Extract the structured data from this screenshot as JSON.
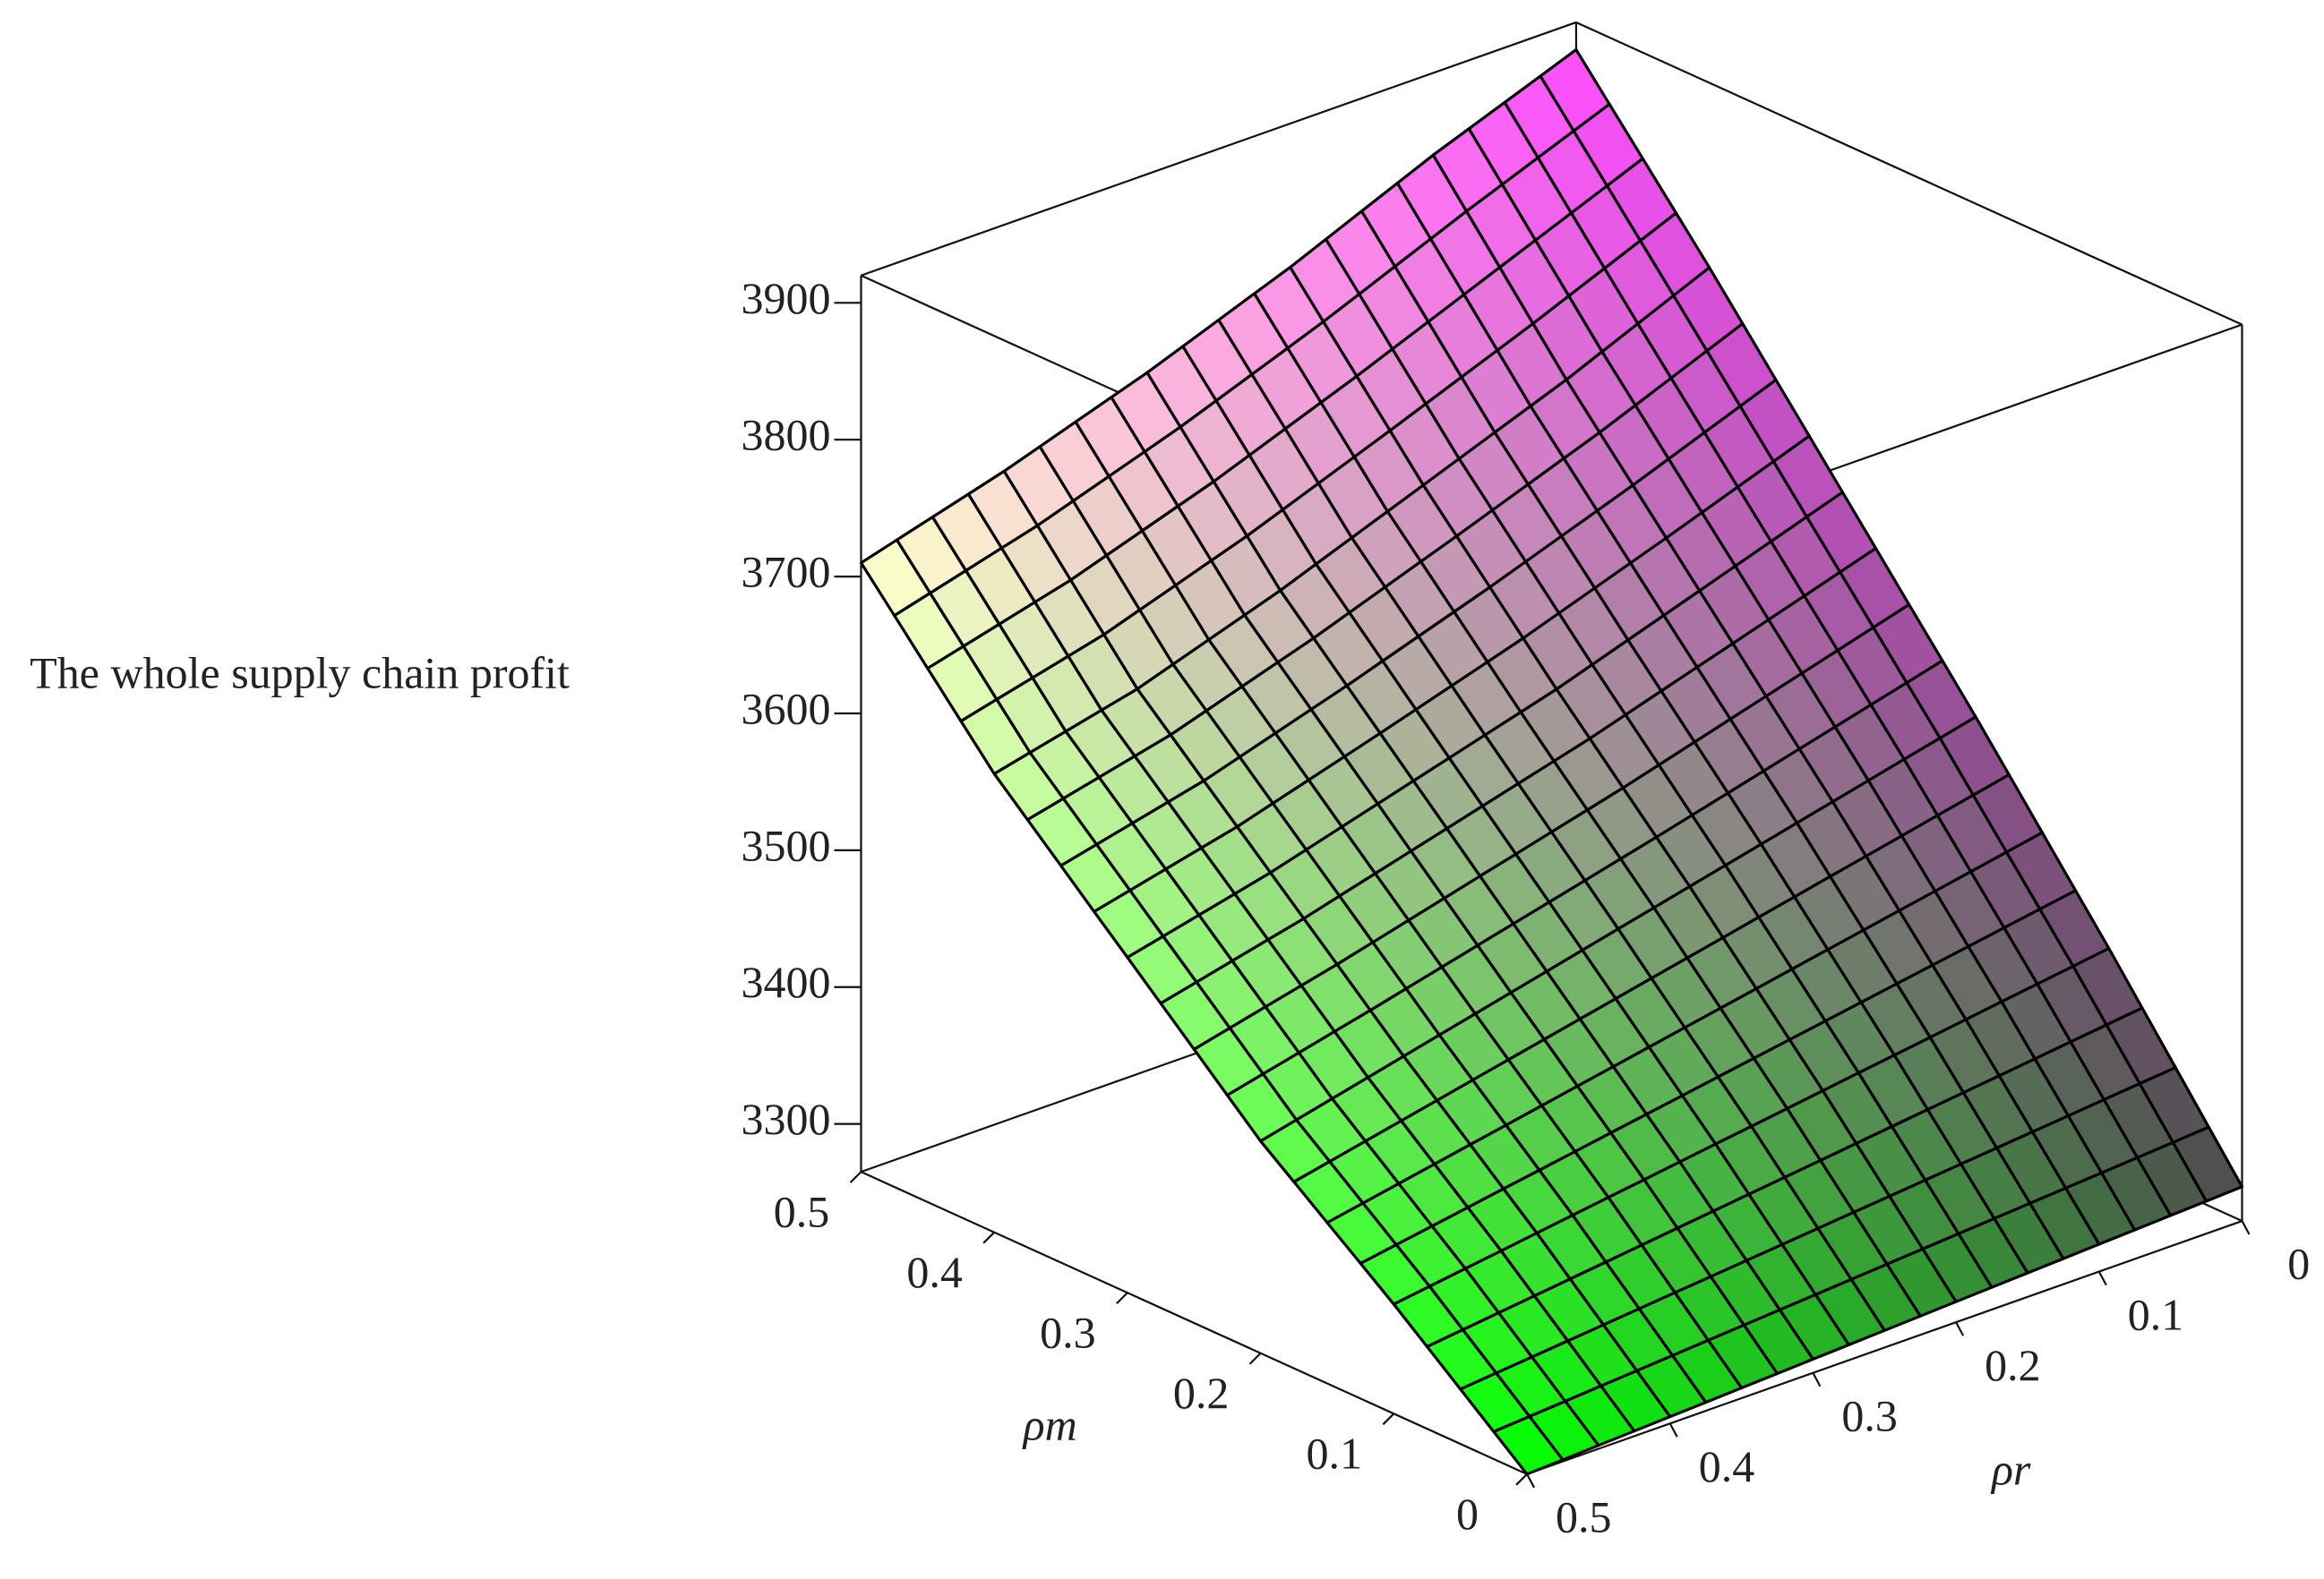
{
  "chart_data": {
    "type": "surface",
    "zlabel": "The whole supply chain profit",
    "xlabel": "ρm",
    "ylabel": "ρr",
    "x": [
      0,
      0.1,
      0.2,
      0.3,
      0.4,
      0.5
    ],
    "y": [
      0,
      0.1,
      0.2,
      0.3,
      0.4,
      0.5
    ],
    "values": [
      [
        3290,
        3285,
        3280,
        3275,
        3270,
        3265
      ],
      [
        3420,
        3405,
        3390,
        3375,
        3360,
        3345
      ],
      [
        3545,
        3520,
        3495,
        3470,
        3445,
        3420
      ],
      [
        3665,
        3630,
        3595,
        3565,
        3535,
        3510
      ],
      [
        3785,
        3740,
        3700,
        3660,
        3625,
        3600
      ],
      [
        3900,
        3860,
        3815,
        3775,
        3740,
        3710
      ]
    ],
    "xlim": [
      0,
      0.5
    ],
    "ylim": [
      0,
      0.5
    ],
    "zlim": [
      3265,
      3920
    ],
    "xticks": [
      0,
      0.1,
      0.2,
      0.3,
      0.4,
      0.5
    ],
    "yticks": [
      0,
      0.1,
      0.2,
      0.3,
      0.4,
      0.5
    ],
    "zticks": [
      3300,
      3400,
      3500,
      3600,
      3700,
      3800,
      3900
    ]
  }
}
